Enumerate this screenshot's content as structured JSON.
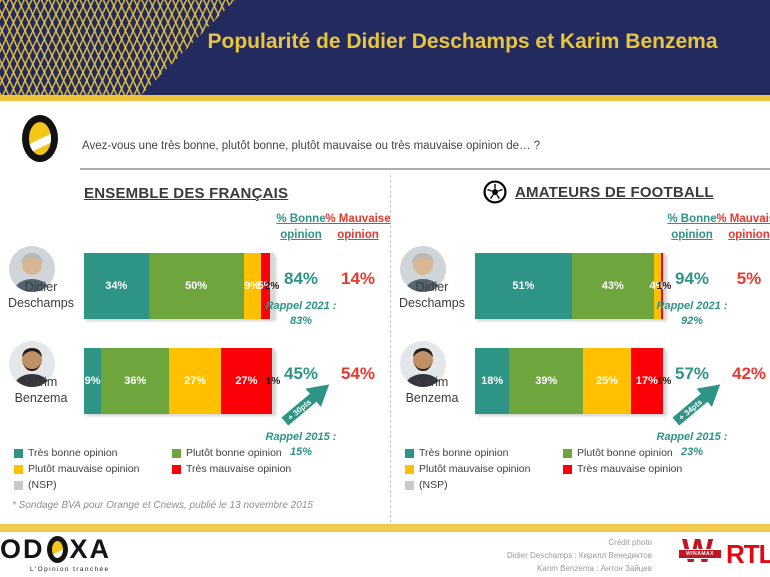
{
  "header": {
    "title": "Popularité de Didier Deschamps et Karim Benzema"
  },
  "question": {
    "text": "Avez-vous une très bonne, plutôt bonne, plutôt mauvaise ou très mauvaise opinion de… ?"
  },
  "column_headers": {
    "bonne": "% Bonne opinion",
    "mauvaise": "% Mauvaise opinion"
  },
  "panels": [
    {
      "title": "ENSEMBLE DES FRANÇAIS",
      "rows": [
        {
          "name": "Didier Deschamps",
          "segments": [
            34,
            50,
            9,
            5,
            2
          ],
          "labels": [
            "34%",
            "50%",
            "9%",
            "5%",
            "2%"
          ],
          "bonne": "84%",
          "mauvaise": "14%",
          "rappel_label": "Rappel 2021 :",
          "rappel_value": "83%"
        },
        {
          "name": "Karim Benzema",
          "segments": [
            9,
            36,
            27,
            27,
            1
          ],
          "labels": [
            "9%",
            "36%",
            "27%",
            "27%",
            "1%"
          ],
          "bonne": "45%",
          "mauvaise": "54%",
          "arrow": "+ 30pts",
          "rappel_label": "Rappel 2015 :",
          "rappel_value": "15%"
        }
      ]
    },
    {
      "title": "AMATEURS DE FOOTBALL",
      "rows": [
        {
          "name": "Didier Deschamps",
          "segments": [
            51,
            43,
            4,
            1,
            1
          ],
          "labels": [
            "51%",
            "43%",
            "4%",
            "",
            "1%"
          ],
          "bonne": "94%",
          "mauvaise": "5%",
          "rappel_label": "Rappel 2021 :",
          "rappel_value": "92%"
        },
        {
          "name": "Karim Benzema",
          "segments": [
            18,
            39,
            25,
            17,
            1
          ],
          "labels": [
            "18%",
            "39%",
            "25%",
            "17%",
            "1%"
          ],
          "bonne": "57%",
          "mauvaise": "42%",
          "arrow": "+ 34pts",
          "rappel_label": "Rappel 2015 :",
          "rappel_value": "23%"
        }
      ]
    }
  ],
  "legend": {
    "items": [
      {
        "label": "Très bonne opinion",
        "color": "#2E9486"
      },
      {
        "label": "Plutôt bonne opinion",
        "color": "#6EA63D"
      },
      {
        "label": "Plutôt mauvaise opinion",
        "color": "#FFC000"
      },
      {
        "label": "Très mauvaise opinion",
        "color": "#FB0007"
      },
      {
        "label": "(NSP)",
        "color": "#C9C9C9"
      }
    ]
  },
  "footnote": "* Sondage BVA pour Orange et Cnews, publié le 13 novembre 2015",
  "footer": {
    "odoxa_left": "OD",
    "odoxa_right": "XA",
    "odoxa_tagline": "L'Opinion tranchée",
    "credit_lines": [
      "Crédit photo",
      "Didier Deschamps : Кирилл Венедиктов",
      "Karim Benzema : Антон Зайцев"
    ],
    "winamax_w": "W",
    "winamax_label": "WINAMAX",
    "rtl_label": "RTL"
  },
  "colors": {
    "navy": "#232A5E",
    "gold": "#E9C53D",
    "teal": "#2E9486",
    "green": "#6EA63D",
    "yellow": "#FFC000",
    "red": "#FB0007",
    "nsp_gray": "#D8D8D8",
    "text_red": "#E8392E"
  },
  "chart_data": [
    {
      "type": "bar",
      "subtype": "stacked-horizontal",
      "title": "ENSEMBLE DES FRANÇAIS",
      "categories": [
        "Didier Deschamps",
        "Karim Benzema"
      ],
      "series": [
        {
          "name": "Très bonne opinion",
          "color": "#2E9486",
          "values": [
            34,
            9
          ]
        },
        {
          "name": "Plutôt bonne opinion",
          "color": "#6EA63D",
          "values": [
            50,
            36
          ]
        },
        {
          "name": "Plutôt mauvaise opinion",
          "color": "#FFC000",
          "values": [
            9,
            27
          ]
        },
        {
          "name": "Très mauvaise opinion",
          "color": "#FB0007",
          "values": [
            5,
            27
          ]
        },
        {
          "name": "(NSP)",
          "color": "#D8D8D8",
          "values": [
            2,
            1
          ]
        }
      ],
      "bonne_opinion_totals": [
        84,
        45
      ],
      "mauvaise_opinion_totals": [
        14,
        54
      ],
      "rappel": [
        "Rappel 2021 : 83%",
        "Rappel 2015 : 15%"
      ],
      "annotations": [
        "+ 30pts (Karim Benzema vs 2015)"
      ],
      "xlim": [
        0,
        100
      ],
      "unit": "%",
      "legend_position": "bottom",
      "grid": false
    },
    {
      "type": "bar",
      "subtype": "stacked-horizontal",
      "title": "AMATEURS DE FOOTBALL",
      "categories": [
        "Didier Deschamps",
        "Karim Benzema"
      ],
      "series": [
        {
          "name": "Très bonne opinion",
          "color": "#2E9486",
          "values": [
            51,
            18
          ]
        },
        {
          "name": "Plutôt bonne opinion",
          "color": "#6EA63D",
          "values": [
            43,
            39
          ]
        },
        {
          "name": "Plutôt mauvaise opinion",
          "color": "#FFC000",
          "values": [
            4,
            25
          ]
        },
        {
          "name": "Très mauvaise opinion",
          "color": "#FB0007",
          "values": [
            1,
            17
          ]
        },
        {
          "name": "(NSP)",
          "color": "#D8D8D8",
          "values": [
            1,
            1
          ]
        }
      ],
      "bonne_opinion_totals": [
        94,
        57
      ],
      "mauvaise_opinion_totals": [
        5,
        42
      ],
      "rappel": [
        "Rappel 2021 : 92%",
        "Rappel 2015 : 23%"
      ],
      "annotations": [
        "+ 34pts (Karim Benzema vs 2015)"
      ],
      "xlim": [
        0,
        100
      ],
      "unit": "%",
      "legend_position": "bottom",
      "grid": false
    }
  ]
}
